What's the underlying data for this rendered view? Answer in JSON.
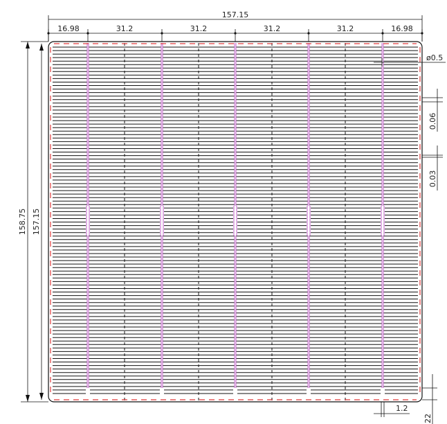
{
  "dimensions": {
    "overall_width": "157.15",
    "edge_left": "16.98",
    "spacing_1": "31.2",
    "spacing_2": "31.2",
    "spacing_3": "31.2",
    "spacing_4": "31.2",
    "edge_right": "16.98",
    "overall_height_outer": "158.75",
    "overall_height_inner": "157.15",
    "hole_diameter": "ø0.5",
    "finger_pitch": "0.06",
    "finger_width": "0.03",
    "busbar_width": "1.2",
    "bottom_edge": "22"
  },
  "colors": {
    "busbar": "#c060c8",
    "edge_dash": "#e03a3a",
    "line": "#111111"
  }
}
